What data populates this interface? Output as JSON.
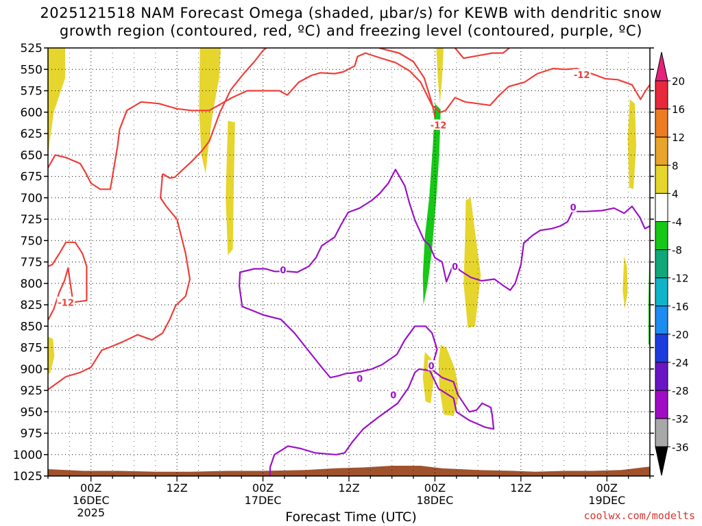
{
  "title": {
    "line1": "2025121518 NAM Forecast Omega (shaded, μbar/s) for KEWB with dendritic snow",
    "line2": "growth region (contoured, red, ºC) and freezing level (contoured, purple, ºC)"
  },
  "credit": "coolwx.com/modelts",
  "chart_data": {
    "type": "contour",
    "xlabel": "Forecast Time (UTC)",
    "ylabel": "",
    "x_units": "forecast hours from 2025-12-15 18Z",
    "xlim": [
      0,
      84
    ],
    "ylim": [
      1025,
      525
    ],
    "y_ticks": [
      525,
      550,
      575,
      600,
      625,
      650,
      675,
      700,
      725,
      750,
      775,
      800,
      825,
      850,
      875,
      900,
      925,
      950,
      975,
      1000,
      1025
    ],
    "x_ticks": [
      {
        "hour": 6,
        "label": "00Z",
        "sub": "16DEC",
        "sub2": "2025"
      },
      {
        "hour": 18,
        "label": "12Z",
        "sub": "",
        "sub2": ""
      },
      {
        "hour": 30,
        "label": "00Z",
        "sub": "17DEC",
        "sub2": ""
      },
      {
        "hour": 42,
        "label": "12Z",
        "sub": "",
        "sub2": ""
      },
      {
        "hour": 54,
        "label": "00Z",
        "sub": "18DEC",
        "sub2": ""
      },
      {
        "hour": 66,
        "label": "12Z",
        "sub": "",
        "sub2": ""
      },
      {
        "hour": 78,
        "label": "00Z",
        "sub": "19DEC",
        "sub2": ""
      }
    ],
    "colorbar": {
      "labels": [
        "20",
        "16",
        "12",
        "8",
        "4",
        "-4",
        "-8",
        "-12",
        "-16",
        "-20",
        "-24",
        "-28",
        "-32",
        "-36"
      ],
      "colors": [
        "#e8283c",
        "#ec7c22",
        "#e8a52a",
        "#e6d52c",
        "#ffffff",
        "#18c818",
        "#10a878",
        "#10b4c8",
        "#1c8cf0",
        "#1c3ce0",
        "#6a16c4",
        "#a00cc4",
        "#a8a8a8"
      ],
      "top_arrow": "#e8207c",
      "bottom_arrow": "#000000"
    },
    "contours": {
      "red_dgz": {
        "color": "#ee3e38",
        "labels": [
          {
            "text": "-12",
            "x": 2.5,
            "p": 822
          },
          {
            "text": "-12",
            "x": 54.5,
            "p": 615
          },
          {
            "text": "-12",
            "x": 74.5,
            "p": 556
          }
        ]
      },
      "purple_freezing": {
        "color": "#9a10c8",
        "labels": [
          {
            "text": "0",
            "x": 32.8,
            "p": 784
          },
          {
            "text": "0",
            "x": 43.5,
            "p": 911
          },
          {
            "text": "0",
            "x": 48.2,
            "p": 930
          },
          {
            "text": "0",
            "x": 53.5,
            "p": 896
          },
          {
            "text": "0",
            "x": 56.8,
            "p": 780
          },
          {
            "text": "0",
            "x": 73.3,
            "p": 711
          }
        ]
      }
    },
    "terrain_color": "#a0522d",
    "omega_fill": {
      "rising_color": "#e6d52c",
      "sinking_color": "#18c818"
    }
  }
}
